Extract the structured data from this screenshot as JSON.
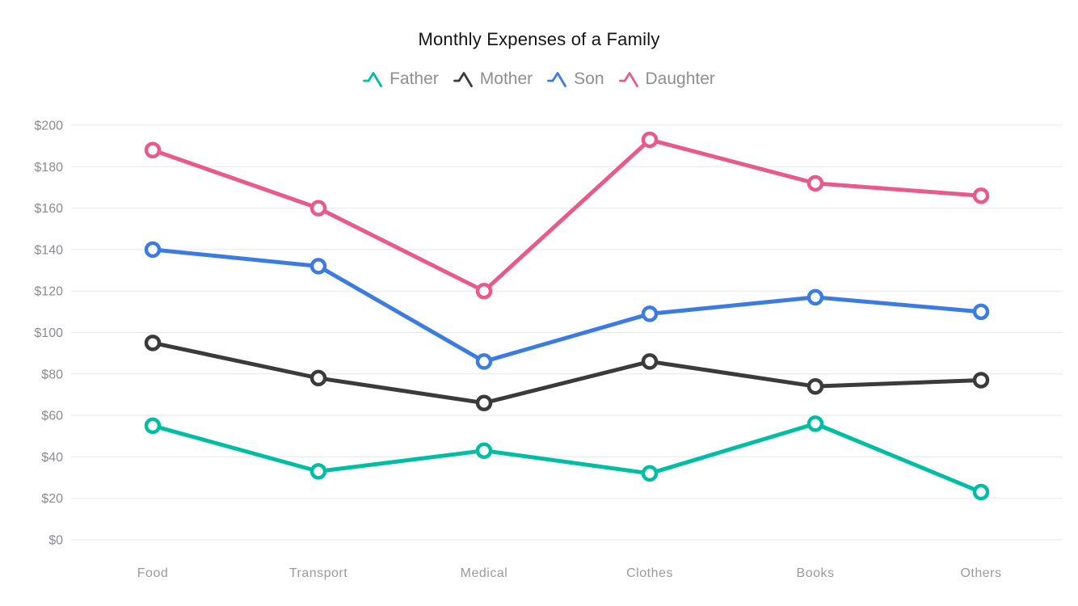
{
  "page": {
    "background": "#ffffff"
  },
  "chart_data": {
    "type": "line",
    "title": "Monthly Expenses of a Family",
    "categories": [
      "Food",
      "Transport",
      "Medical",
      "Clothes",
      "Books",
      "Others"
    ],
    "series": [
      {
        "name": "Father",
        "color": "#00BEA4",
        "values": [
          55,
          33,
          43,
          32,
          56,
          23
        ]
      },
      {
        "name": "Mother",
        "color": "#3B3B3B",
        "values": [
          95,
          78,
          66,
          86,
          74,
          77
        ]
      },
      {
        "name": "Son",
        "color": "#3C7CE0",
        "values": [
          140,
          132,
          86,
          109,
          117,
          110
        ]
      },
      {
        "name": "Daughter",
        "color": "#E75A8B",
        "values": [
          188,
          160,
          120,
          193,
          172,
          166
        ]
      }
    ],
    "ylim": [
      0,
      200
    ],
    "y_ticks": [
      0,
      20,
      40,
      60,
      80,
      100,
      120,
      140,
      160,
      180,
      200
    ],
    "y_tick_prefix": "$",
    "xlabel": "",
    "ylabel": "",
    "grid": true,
    "legend_position": "top",
    "grid_color": "#E8E8E8",
    "marker_fill": "#FFFFFF"
  }
}
